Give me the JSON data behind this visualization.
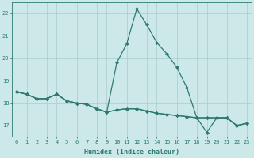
{
  "x": [
    0,
    1,
    2,
    3,
    4,
    5,
    6,
    7,
    8,
    9,
    10,
    11,
    12,
    13,
    14,
    15,
    16,
    17,
    18,
    19,
    20,
    21,
    22,
    23
  ],
  "line1": [
    18.5,
    18.4,
    18.2,
    18.2,
    18.4,
    18.1,
    18.0,
    17.95,
    17.75,
    17.6,
    19.8,
    20.65,
    22.2,
    21.5,
    20.7,
    20.2,
    19.6,
    18.7,
    17.35,
    16.7,
    17.35,
    17.35,
    17.0,
    17.1
  ],
  "line2": [
    18.5,
    18.4,
    18.2,
    18.2,
    18.4,
    18.1,
    18.0,
    17.95,
    17.75,
    17.6,
    17.7,
    17.75,
    17.75,
    17.65,
    17.55,
    17.5,
    17.45,
    17.4,
    17.35,
    17.35,
    17.35,
    17.35,
    17.0,
    17.1
  ],
  "line3": [
    18.5,
    18.4,
    18.2,
    18.2,
    18.4,
    18.1,
    18.0,
    17.95,
    17.75,
    17.6,
    17.7,
    17.75,
    17.75,
    17.65,
    17.55,
    17.5,
    17.45,
    17.4,
    17.35,
    17.35,
    17.35,
    17.35,
    17.0,
    17.1
  ],
  "bg_color": "#cce8e8",
  "grid_color": "#b0d0d0",
  "line_color": "#2e7b6e",
  "marker": "D",
  "markersize": 2.0,
  "linewidth": 0.9,
  "ylabel_ticks": [
    17,
    18,
    19,
    20,
    21,
    22
  ],
  "xlabel": "Humidex (Indice chaleur)",
  "xlim": [
    -0.5,
    23.5
  ],
  "ylim": [
    16.5,
    22.5
  ],
  "figsize": [
    3.2,
    2.0
  ],
  "dpi": 100,
  "tick_fontsize": 5.0,
  "xlabel_fontsize": 6.0
}
